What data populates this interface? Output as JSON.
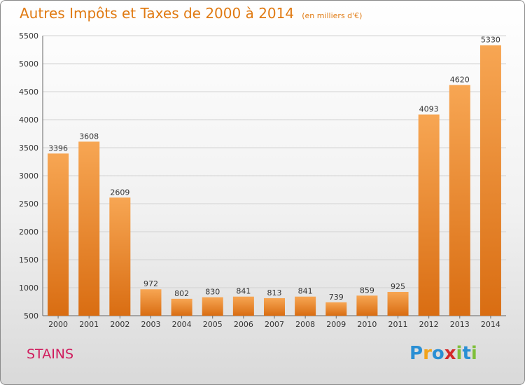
{
  "chart_data": {
    "type": "bar",
    "title": "Autres Impôts et Taxes de 2000 à 2014",
    "subtitle": "(en milliers d'€)",
    "categories": [
      "2000",
      "2001",
      "2002",
      "2003",
      "2004",
      "2005",
      "2006",
      "2007",
      "2008",
      "2009",
      "2010",
      "2011",
      "2012",
      "2013",
      "2014"
    ],
    "values": [
      3396,
      3608,
      2609,
      972,
      802,
      830,
      841,
      813,
      841,
      739,
      859,
      925,
      4093,
      4620,
      5330
    ],
    "ylim": [
      500,
      5500
    ],
    "yticks": [
      500,
      1000,
      1500,
      2000,
      2500,
      3000,
      3500,
      4000,
      4500,
      5000,
      5500
    ],
    "grid": true,
    "bar_color": "#f08a24",
    "accent_color": "#e07a12"
  },
  "footer": {
    "city": "STAINS",
    "logo_letters": [
      "P",
      "r",
      "o",
      "x",
      "i",
      "t",
      "i"
    ],
    "logo_colors": [
      "#2a8fd4",
      "#f2a31b",
      "#2a8fd4",
      "#d42a2a",
      "#7fbf3a",
      "#2a8fd4",
      "#7fbf3a"
    ]
  }
}
